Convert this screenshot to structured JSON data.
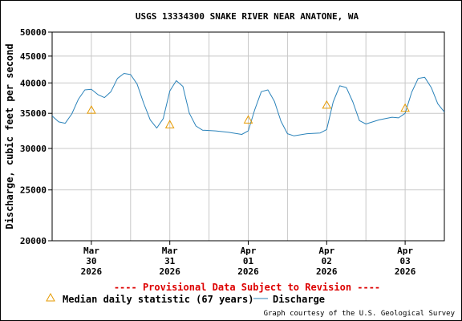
{
  "chart_data": {
    "type": "line",
    "title": "USGS 13334300 SNAKE RIVER NEAR ANATONE, WA",
    "ylabel": "Discharge, cubic feet per second",
    "xlabel": "",
    "y_scale": "log",
    "ylim": [
      20000,
      50000
    ],
    "y_ticks": [
      20000,
      25000,
      30000,
      35000,
      40000,
      45000,
      50000
    ],
    "x_range": [
      "2026-03-29 12:00",
      "2026-04-03 12:00"
    ],
    "x_ticks": [
      {
        "date": "2026-03-30",
        "label": [
          "Mar",
          "30",
          "2026"
        ]
      },
      {
        "date": "2026-03-31",
        "label": [
          "Mar",
          "31",
          "2026"
        ]
      },
      {
        "date": "2026-04-01",
        "label": [
          "Apr",
          "01",
          "2026"
        ]
      },
      {
        "date": "2026-04-02",
        "label": [
          "Apr",
          "02",
          "2026"
        ]
      },
      {
        "date": "2026-04-03",
        "label": [
          "Apr",
          "03",
          "2026"
        ]
      }
    ],
    "grid": true,
    "series": [
      {
        "name": "Discharge",
        "color": "#2b83ba",
        "points": [
          [
            "2026-03-29 12:00",
            34600
          ],
          [
            "2026-03-29 14:00",
            33700
          ],
          [
            "2026-03-29 16:00",
            33500
          ],
          [
            "2026-03-29 18:00",
            34900
          ],
          [
            "2026-03-29 20:00",
            37200
          ],
          [
            "2026-03-29 22:00",
            38800
          ],
          [
            "2026-03-30 00:00",
            38900
          ],
          [
            "2026-03-30 02:00",
            38000
          ],
          [
            "2026-03-30 04:00",
            37500
          ],
          [
            "2026-03-30 06:00",
            38500
          ],
          [
            "2026-03-30 08:00",
            40800
          ],
          [
            "2026-03-30 10:00",
            41700
          ],
          [
            "2026-03-30 12:00",
            41500
          ],
          [
            "2026-03-30 14:00",
            39800
          ],
          [
            "2026-03-30 16:00",
            36600
          ],
          [
            "2026-03-30 18:00",
            34000
          ],
          [
            "2026-03-30 20:00",
            32800
          ],
          [
            "2026-03-30 22:00",
            34200
          ],
          [
            "2026-03-31 00:00",
            38600
          ],
          [
            "2026-03-31 02:00",
            40400
          ],
          [
            "2026-03-31 04:00",
            39400
          ],
          [
            "2026-03-31 06:00",
            35000
          ],
          [
            "2026-03-31 08:00",
            33100
          ],
          [
            "2026-03-31 10:00",
            32500
          ],
          [
            "2026-03-31 14:00",
            32400
          ],
          [
            "2026-03-31 18:00",
            32200
          ],
          [
            "2026-03-31 22:00",
            31900
          ],
          [
            "2026-04-01 00:00",
            32400
          ],
          [
            "2026-04-01 02:00",
            35600
          ],
          [
            "2026-04-01 04:00",
            38500
          ],
          [
            "2026-04-01 06:00",
            38800
          ],
          [
            "2026-04-01 08:00",
            36900
          ],
          [
            "2026-04-01 10:00",
            33800
          ],
          [
            "2026-04-01 12:00",
            32000
          ],
          [
            "2026-04-01 14:00",
            31700
          ],
          [
            "2026-04-01 18:00",
            32000
          ],
          [
            "2026-04-01 22:00",
            32100
          ],
          [
            "2026-04-02 00:00",
            32600
          ],
          [
            "2026-04-02 02:00",
            36800
          ],
          [
            "2026-04-02 04:00",
            39500
          ],
          [
            "2026-04-02 06:00",
            39200
          ],
          [
            "2026-04-02 08:00",
            36800
          ],
          [
            "2026-04-02 10:00",
            33900
          ],
          [
            "2026-04-02 12:00",
            33400
          ],
          [
            "2026-04-02 16:00",
            34000
          ],
          [
            "2026-04-02 20:00",
            34400
          ],
          [
            "2026-04-02 22:00",
            34300
          ],
          [
            "2026-04-03 00:00",
            35000
          ],
          [
            "2026-04-03 02:00",
            38400
          ],
          [
            "2026-04-03 04:00",
            40800
          ],
          [
            "2026-04-03 06:00",
            41000
          ],
          [
            "2026-04-03 08:00",
            39200
          ],
          [
            "2026-04-03 10:00",
            36500
          ],
          [
            "2026-04-03 12:00",
            35200
          ]
        ]
      },
      {
        "name": "Median daily statistic (67 years)",
        "color": "#e69a00",
        "marker": "triangle",
        "points": [
          [
            "2026-03-30 00:00",
            35500
          ],
          [
            "2026-03-31 00:00",
            33300
          ],
          [
            "2026-04-01 00:00",
            34000
          ],
          [
            "2026-04-02 00:00",
            36300
          ],
          [
            "2026-04-03 00:00",
            35800
          ]
        ]
      }
    ]
  },
  "provisional_note": "---- Provisional Data Subject to Revision ----",
  "legend": {
    "median_label": "Median daily statistic (67 years)",
    "discharge_label": "Discharge"
  },
  "credit": "Graph courtesy of the U.S. Geological Survey"
}
